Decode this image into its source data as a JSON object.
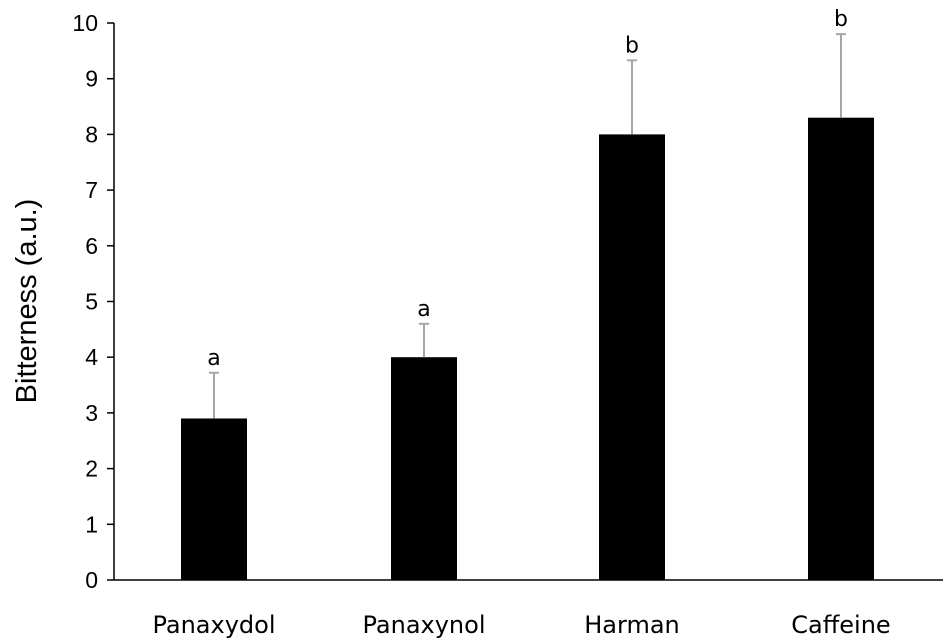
{
  "chart_data": {
    "type": "bar",
    "categories": [
      "Panaxydol",
      "Panaxynol",
      "Harman",
      "Caffeine"
    ],
    "values": [
      2.9,
      4.0,
      8.0,
      8.3
    ],
    "error_upper": [
      0.82,
      0.6,
      1.33,
      1.5
    ],
    "significance_labels": [
      "a",
      "a",
      "b",
      "b"
    ],
    "title": "",
    "xlabel": "",
    "ylabel": "Bitterness (a.u.)",
    "ylim": [
      0,
      10
    ],
    "yticks": [
      "0",
      "1",
      "2",
      "3",
      "4",
      "5",
      "6",
      "7",
      "8",
      "9",
      "10"
    ],
    "grid": false,
    "legend": "none",
    "bar_color": "#000000",
    "errorbar_color": "#a6a6a6",
    "axis_color": "#000000"
  }
}
